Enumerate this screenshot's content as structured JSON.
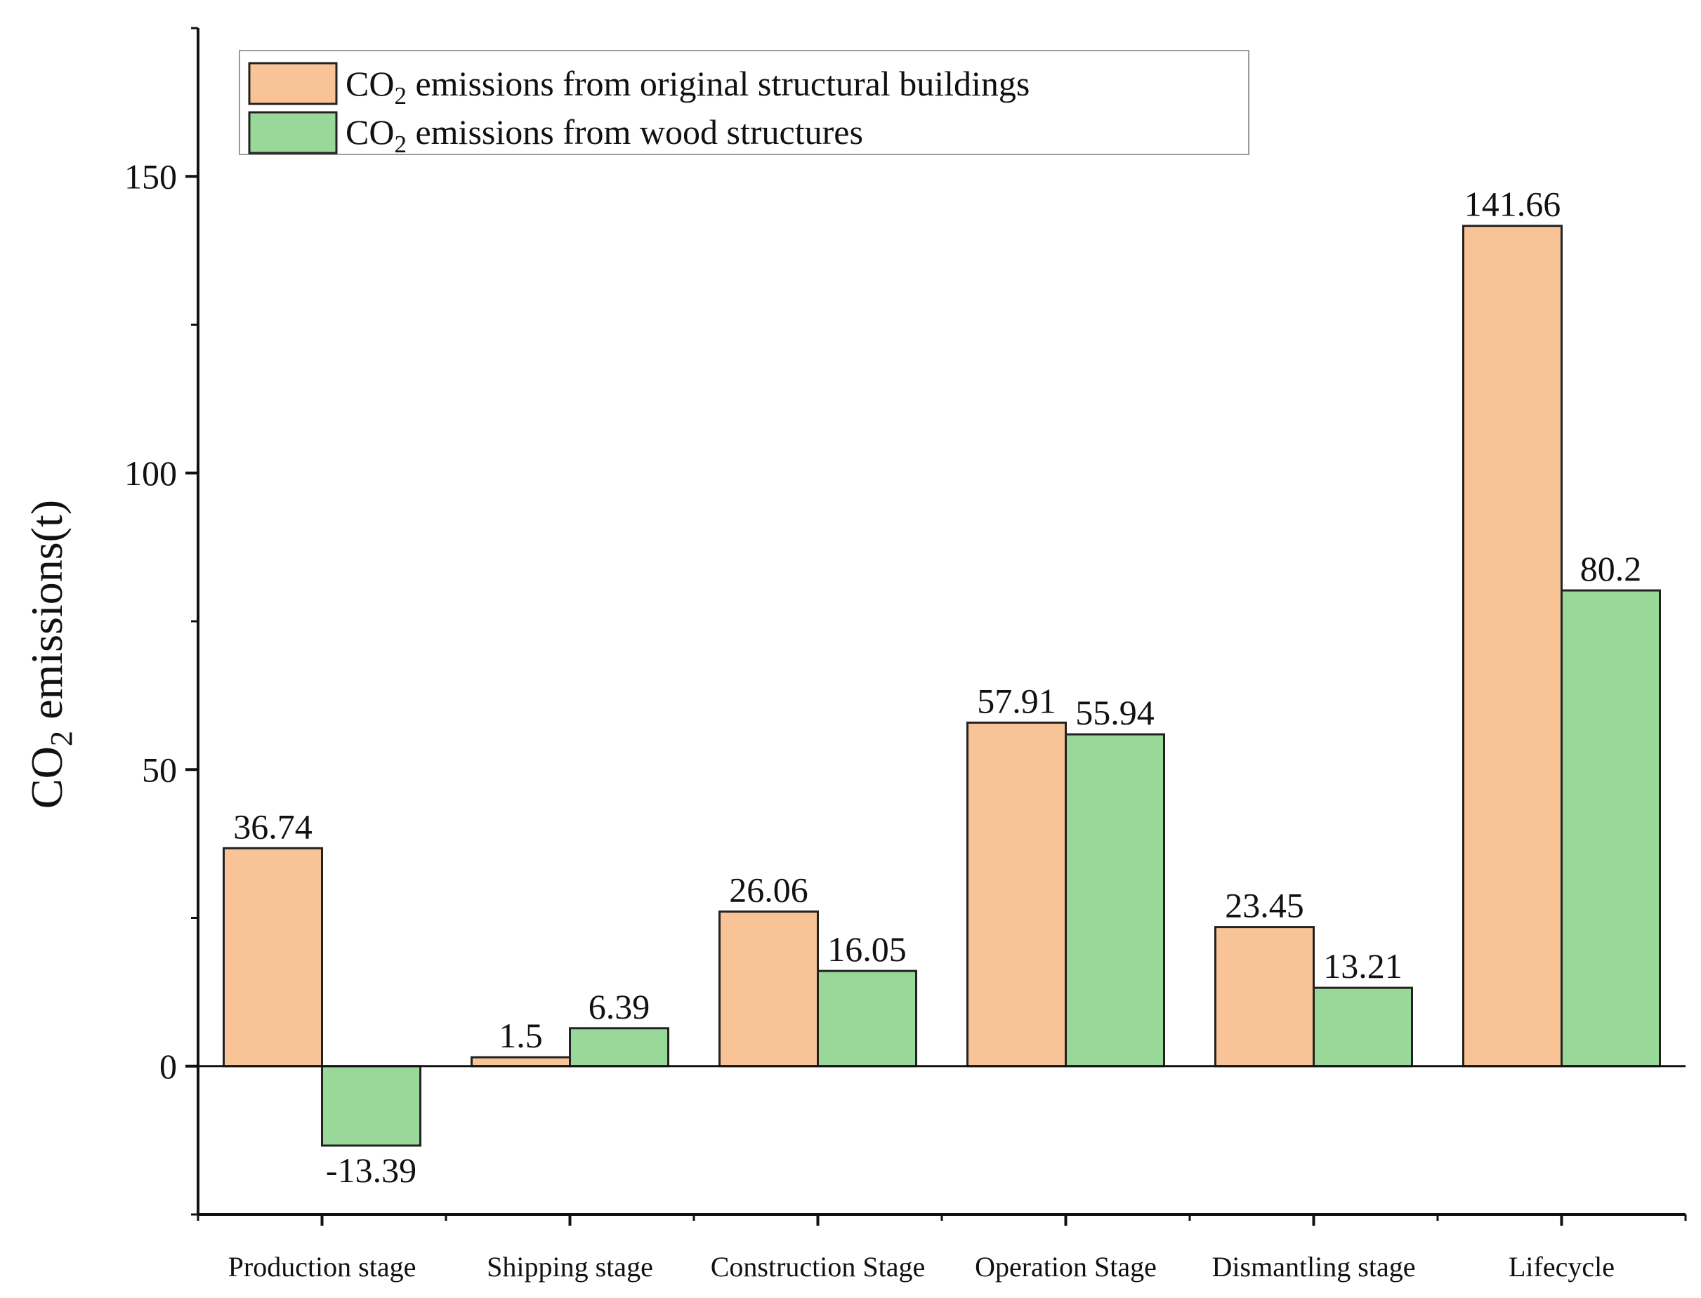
{
  "chart_data": {
    "type": "bar",
    "title": "",
    "xlabel": "",
    "ylabel": {
      "prefix": "CO",
      "subscript": "2",
      "suffix": " emissions(t)"
    },
    "categories": [
      "Production stage",
      "Shipping stage",
      "Construction Stage",
      "Operation Stage",
      "Dismantling stage",
      "Lifecycle"
    ],
    "series": [
      {
        "name": {
          "prefix": "CO",
          "subscript": "2",
          "suffix": " emissions from original structural buildings"
        },
        "color": "#f8c497",
        "values": [
          36.74,
          1.5,
          26.06,
          57.91,
          23.45,
          141.66
        ],
        "labels": [
          "36.74",
          "1.5",
          "26.06",
          "57.91",
          "23.45",
          "141.66"
        ]
      },
      {
        "name": {
          "prefix": "CO",
          "subscript": "2",
          "suffix": " emissions from wood structures"
        },
        "color": "#9ad89a",
        "values": [
          -13.39,
          6.39,
          16.05,
          55.94,
          13.21,
          80.2
        ],
        "labels": [
          "-13.39",
          "6.39",
          "16.05",
          "55.94",
          "13.21",
          "80.2"
        ]
      }
    ],
    "yticks": [
      0,
      50,
      100,
      150
    ],
    "ytick_labels": [
      "0",
      "50",
      "100",
      "150"
    ],
    "ylim": [
      -25,
      175
    ],
    "legend_position": "top-left",
    "grid": false,
    "axis_color": "#111111",
    "bar_edge_color": "#222222"
  }
}
